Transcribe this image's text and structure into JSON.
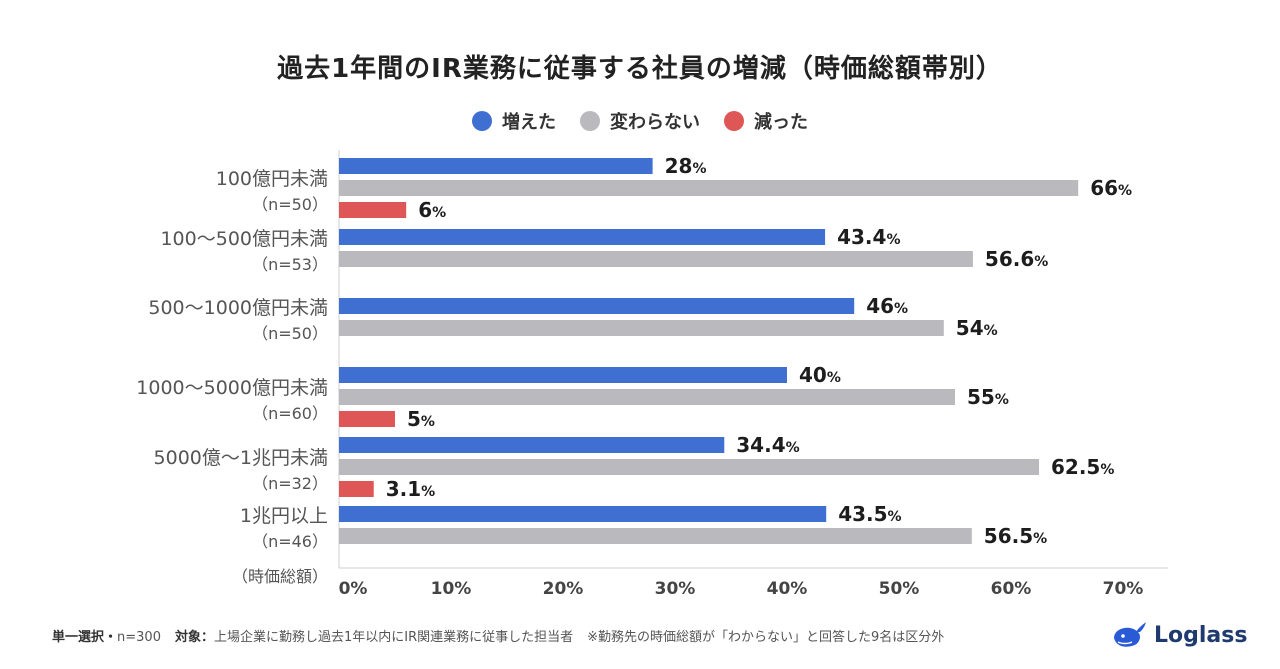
{
  "title": "過去1年間のIR業務に従事する社員の増減（時価総額帯別）",
  "legend": [
    {
      "label": "増えた",
      "color": "#3f6fd1"
    },
    {
      "label": "変わらない",
      "color": "#b9b9be"
    },
    {
      "label": "減った",
      "color": "#de5656"
    }
  ],
  "chart_data": {
    "type": "bar",
    "orientation": "horizontal",
    "title": "過去1年間のIR業務に従事する社員の増減（時価総額帯別）",
    "axis_title": "（時価総額）",
    "xlim": [
      0,
      70
    ],
    "ticks": [
      "0%",
      "10%",
      "20%",
      "30%",
      "40%",
      "50%",
      "60%",
      "70%"
    ],
    "tick_values": [
      0,
      10,
      20,
      30,
      40,
      50,
      60,
      70
    ],
    "unit": "%",
    "groups": [
      {
        "label": "100億円未満",
        "n": "（n=50）",
        "bars": [
          {
            "series": "増えた",
            "value": 28,
            "text": "28"
          },
          {
            "series": "変わらない",
            "value": 66,
            "text": "66"
          },
          {
            "series": "減った",
            "value": 6,
            "text": "6"
          }
        ]
      },
      {
        "label": "100〜500億円未満",
        "n": "（n=53）",
        "bars": [
          {
            "series": "増えた",
            "value": 43.4,
            "text": "43.4"
          },
          {
            "series": "変わらない",
            "value": 56.6,
            "text": "56.6"
          }
        ]
      },
      {
        "label": "500〜1000億円未満",
        "n": "（n=50）",
        "bars": [
          {
            "series": "増えた",
            "value": 46,
            "text": "46"
          },
          {
            "series": "変わらない",
            "value": 54,
            "text": "54"
          }
        ]
      },
      {
        "label": "1000〜5000億円未満",
        "n": "（n=60）",
        "bars": [
          {
            "series": "増えた",
            "value": 40,
            "text": "40"
          },
          {
            "series": "変わらない",
            "value": 55,
            "text": "55"
          },
          {
            "series": "減った",
            "value": 5,
            "text": "5"
          }
        ]
      },
      {
        "label": "5000億〜1兆円未満",
        "n": "（n=32）",
        "bars": [
          {
            "series": "増えた",
            "value": 34.4,
            "text": "34.4"
          },
          {
            "series": "変わらない",
            "value": 62.5,
            "text": "62.5"
          },
          {
            "series": "減った",
            "value": 3.1,
            "text": "3.1"
          }
        ]
      },
      {
        "label": "1兆円以上",
        "n": "（n=46）",
        "bars": [
          {
            "series": "増えた",
            "value": 43.5,
            "text": "43.5"
          },
          {
            "series": "変わらない",
            "value": 56.5,
            "text": "56.5"
          }
        ]
      }
    ]
  },
  "footer": {
    "selection": "単一選択・",
    "n_total": "n=300",
    "target_label": "対象：",
    "target_text": "上場企業に勤務し過去1年以内にIR関連業務に従事した担当者",
    "note": "※勤務先の時価総額が「わからない」と回答した9名は区分外"
  },
  "logo": {
    "name": "Loglass",
    "icon": "whale-logo-icon"
  }
}
